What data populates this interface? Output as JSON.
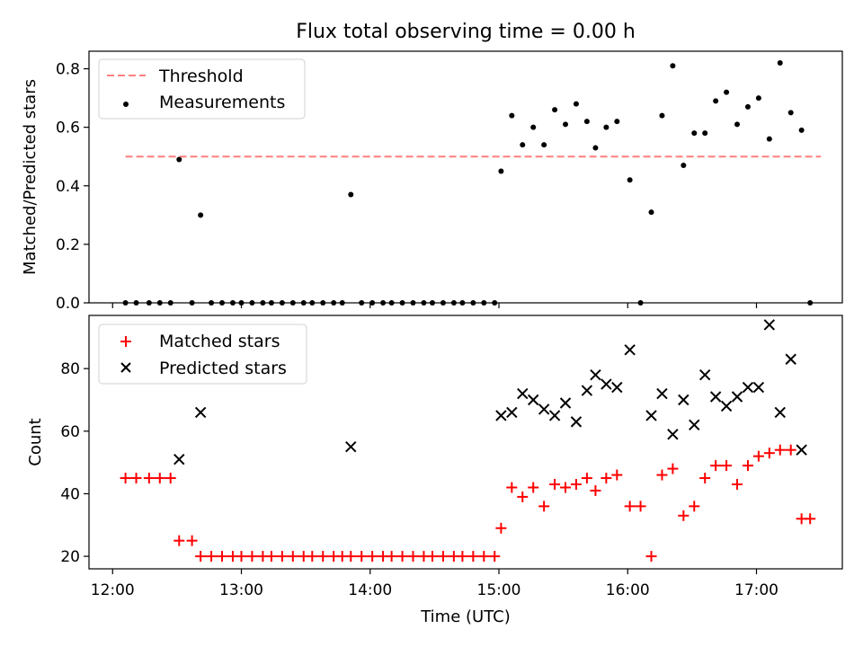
{
  "chart_data": [
    {
      "type": "scatter",
      "title": "Flux total observing time = 0.00 h",
      "xlabel": "",
      "ylabel": "Matched/Predicted stars",
      "ylim": [
        0,
        0.86
      ],
      "yticks": [
        "0.0",
        "0.2",
        "0.4",
        "0.6",
        "0.8"
      ],
      "grid": false,
      "legend": "top-left",
      "threshold": {
        "name": "Threshold",
        "value": 0.5,
        "x_range": [
          "12:06",
          "17:30"
        ],
        "color": "#ff7f7f",
        "style": "dashed"
      },
      "series": [
        {
          "name": "Measurements",
          "marker": "dot",
          "color": "#000000",
          "points": [
            [
              "12:06",
              0.0
            ],
            [
              "12:11",
              0.0
            ],
            [
              "12:17",
              0.0
            ],
            [
              "12:22",
              0.0
            ],
            [
              "12:27",
              0.0
            ],
            [
              "12:31",
              0.49
            ],
            [
              "12:37",
              0.0
            ],
            [
              "12:41",
              0.3
            ],
            [
              "12:46",
              0.0
            ],
            [
              "12:51",
              0.0
            ],
            [
              "12:56",
              0.0
            ],
            [
              "13:00",
              0.0
            ],
            [
              "13:05",
              0.0
            ],
            [
              "13:10",
              0.0
            ],
            [
              "13:14",
              0.0
            ],
            [
              "13:19",
              0.0
            ],
            [
              "13:24",
              0.0
            ],
            [
              "13:29",
              0.0
            ],
            [
              "13:33",
              0.0
            ],
            [
              "13:38",
              0.0
            ],
            [
              "13:43",
              0.0
            ],
            [
              "13:47",
              0.0
            ],
            [
              "13:51",
              0.37
            ],
            [
              "13:56",
              0.0
            ],
            [
              "14:01",
              0.0
            ],
            [
              "14:06",
              0.0
            ],
            [
              "14:10",
              0.0
            ],
            [
              "14:15",
              0.0
            ],
            [
              "14:20",
              0.0
            ],
            [
              "14:25",
              0.0
            ],
            [
              "14:29",
              0.0
            ],
            [
              "14:34",
              0.0
            ],
            [
              "14:39",
              0.0
            ],
            [
              "14:43",
              0.0
            ],
            [
              "14:48",
              0.0
            ],
            [
              "14:53",
              0.0
            ],
            [
              "14:58",
              0.0
            ],
            [
              "15:01",
              0.45
            ],
            [
              "15:06",
              0.64
            ],
            [
              "15:11",
              0.54
            ],
            [
              "15:16",
              0.6
            ],
            [
              "15:21",
              0.54
            ],
            [
              "15:26",
              0.66
            ],
            [
              "15:31",
              0.61
            ],
            [
              "15:36",
              0.68
            ],
            [
              "15:41",
              0.62
            ],
            [
              "15:45",
              0.53
            ],
            [
              "15:50",
              0.6
            ],
            [
              "15:55",
              0.62
            ],
            [
              "16:01",
              0.42
            ],
            [
              "16:06",
              0.0
            ],
            [
              "16:11",
              0.31
            ],
            [
              "16:16",
              0.64
            ],
            [
              "16:21",
              0.81
            ],
            [
              "16:26",
              0.47
            ],
            [
              "16:31",
              0.58
            ],
            [
              "16:36",
              0.58
            ],
            [
              "16:41",
              0.69
            ],
            [
              "16:46",
              0.72
            ],
            [
              "16:51",
              0.61
            ],
            [
              "16:56",
              0.67
            ],
            [
              "17:01",
              0.7
            ],
            [
              "17:06",
              0.56
            ],
            [
              "17:11",
              0.82
            ],
            [
              "17:16",
              0.65
            ],
            [
              "17:21",
              0.59
            ],
            [
              "17:25",
              0.0
            ]
          ]
        }
      ]
    },
    {
      "type": "scatter",
      "title": "",
      "xlabel": "Time (UTC)",
      "ylabel": "Count",
      "ylim": [
        16,
        97
      ],
      "yticks": [
        "20",
        "40",
        "60",
        "80"
      ],
      "xticks": [
        "12:00",
        "13:00",
        "14:00",
        "15:00",
        "16:00",
        "17:00"
      ],
      "grid": false,
      "legend": "top-left",
      "series": [
        {
          "name": "Matched stars",
          "marker": "plus",
          "color": "#ff0000",
          "points": [
            [
              "12:06",
              45
            ],
            [
              "12:11",
              45
            ],
            [
              "12:17",
              45
            ],
            [
              "12:22",
              45
            ],
            [
              "12:27",
              45
            ],
            [
              "12:31",
              25
            ],
            [
              "12:37",
              25
            ],
            [
              "12:41",
              20
            ],
            [
              "12:46",
              20
            ],
            [
              "12:51",
              20
            ],
            [
              "12:56",
              20
            ],
            [
              "13:00",
              20
            ],
            [
              "13:05",
              20
            ],
            [
              "13:10",
              20
            ],
            [
              "13:14",
              20
            ],
            [
              "13:19",
              20
            ],
            [
              "13:24",
              20
            ],
            [
              "13:29",
              20
            ],
            [
              "13:33",
              20
            ],
            [
              "13:38",
              20
            ],
            [
              "13:43",
              20
            ],
            [
              "13:47",
              20
            ],
            [
              "13:51",
              20
            ],
            [
              "13:56",
              20
            ],
            [
              "14:01",
              20
            ],
            [
              "14:06",
              20
            ],
            [
              "14:10",
              20
            ],
            [
              "14:15",
              20
            ],
            [
              "14:20",
              20
            ],
            [
              "14:25",
              20
            ],
            [
              "14:29",
              20
            ],
            [
              "14:34",
              20
            ],
            [
              "14:39",
              20
            ],
            [
              "14:43",
              20
            ],
            [
              "14:48",
              20
            ],
            [
              "14:53",
              20
            ],
            [
              "14:58",
              20
            ],
            [
              "15:01",
              29
            ],
            [
              "15:06",
              42
            ],
            [
              "15:11",
              39
            ],
            [
              "15:16",
              42
            ],
            [
              "15:21",
              36
            ],
            [
              "15:26",
              43
            ],
            [
              "15:31",
              42
            ],
            [
              "15:36",
              43
            ],
            [
              "15:41",
              45
            ],
            [
              "15:45",
              41
            ],
            [
              "15:50",
              45
            ],
            [
              "15:55",
              46
            ],
            [
              "16:01",
              36
            ],
            [
              "16:06",
              36
            ],
            [
              "16:11",
              20
            ],
            [
              "16:16",
              46
            ],
            [
              "16:21",
              48
            ],
            [
              "16:26",
              33
            ],
            [
              "16:31",
              36
            ],
            [
              "16:36",
              45
            ],
            [
              "16:41",
              49
            ],
            [
              "16:46",
              49
            ],
            [
              "16:51",
              43
            ],
            [
              "16:56",
              49
            ],
            [
              "17:01",
              52
            ],
            [
              "17:06",
              53
            ],
            [
              "17:11",
              54
            ],
            [
              "17:16",
              54
            ],
            [
              "17:21",
              32
            ],
            [
              "17:25",
              32
            ]
          ]
        },
        {
          "name": "Predicted stars",
          "marker": "x",
          "color": "#000000",
          "points": [
            [
              "12:31",
              51
            ],
            [
              "12:41",
              66
            ],
            [
              "13:51",
              55
            ],
            [
              "15:01",
              65
            ],
            [
              "15:06",
              66
            ],
            [
              "15:11",
              72
            ],
            [
              "15:16",
              70
            ],
            [
              "15:21",
              67
            ],
            [
              "15:26",
              65
            ],
            [
              "15:31",
              69
            ],
            [
              "15:36",
              63
            ],
            [
              "15:41",
              73
            ],
            [
              "15:45",
              78
            ],
            [
              "15:50",
              75
            ],
            [
              "15:55",
              74
            ],
            [
              "16:01",
              86
            ],
            [
              "16:11",
              65
            ],
            [
              "16:16",
              72
            ],
            [
              "16:21",
              59
            ],
            [
              "16:26",
              70
            ],
            [
              "16:31",
              62
            ],
            [
              "16:36",
              78
            ],
            [
              "16:41",
              71
            ],
            [
              "16:46",
              68
            ],
            [
              "16:51",
              71
            ],
            [
              "16:56",
              74
            ],
            [
              "17:01",
              74
            ],
            [
              "17:06",
              94
            ],
            [
              "17:11",
              66
            ],
            [
              "17:16",
              83
            ],
            [
              "17:21",
              54
            ]
          ]
        }
      ]
    }
  ]
}
